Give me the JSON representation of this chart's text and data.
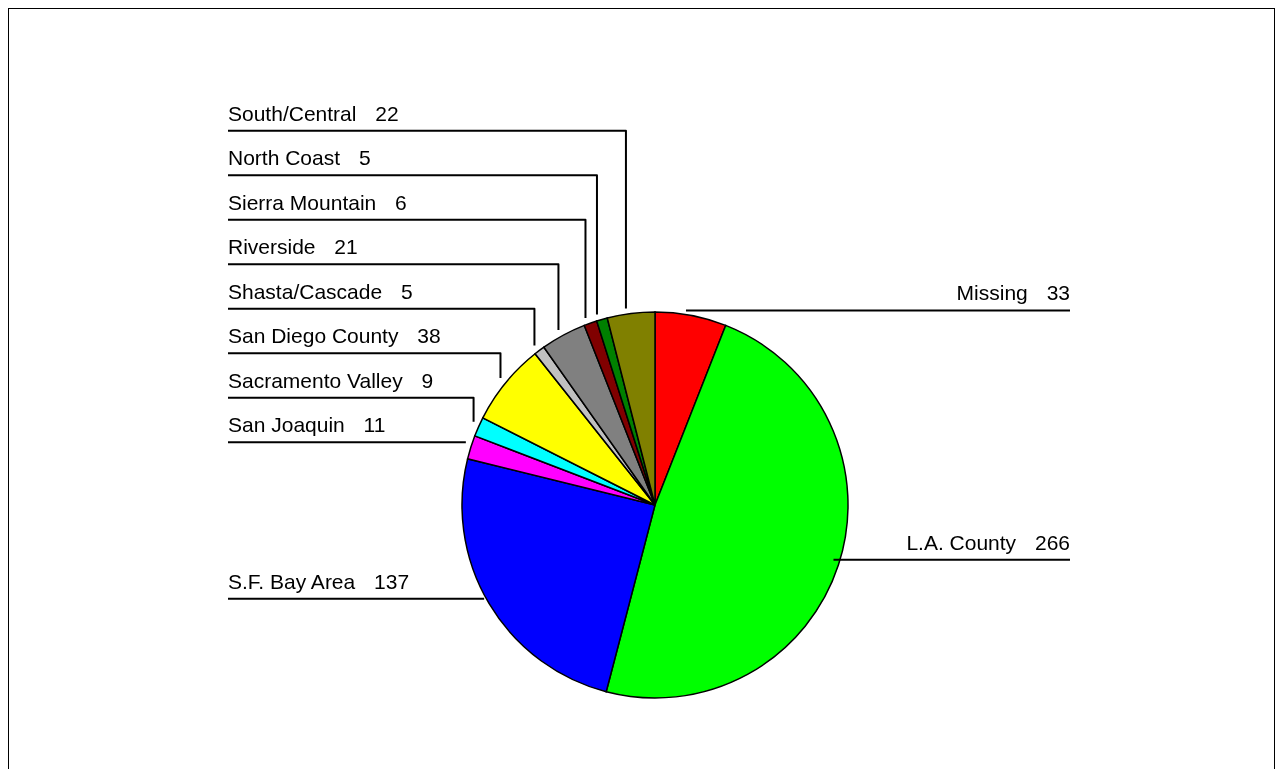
{
  "chart_data": {
    "type": "pie",
    "categories": [
      "Missing",
      "L.A. County",
      "S.F. Bay Area",
      "San Joaquin",
      "Sacramento Valley",
      "San Diego County",
      "Shasta/Cascade",
      "Riverside",
      "Sierra Mountain",
      "North Coast",
      "South/Central"
    ],
    "values": [
      33,
      266,
      137,
      11,
      9,
      38,
      5,
      21,
      6,
      5,
      22
    ],
    "colors": [
      "#ff0000",
      "#00ff00",
      "#0000ff",
      "#ff00ff",
      "#00ffff",
      "#ffff00",
      "#c0c0c0",
      "#808080",
      "#800000",
      "#008000",
      "#808000"
    ],
    "data_labels": true
  }
}
